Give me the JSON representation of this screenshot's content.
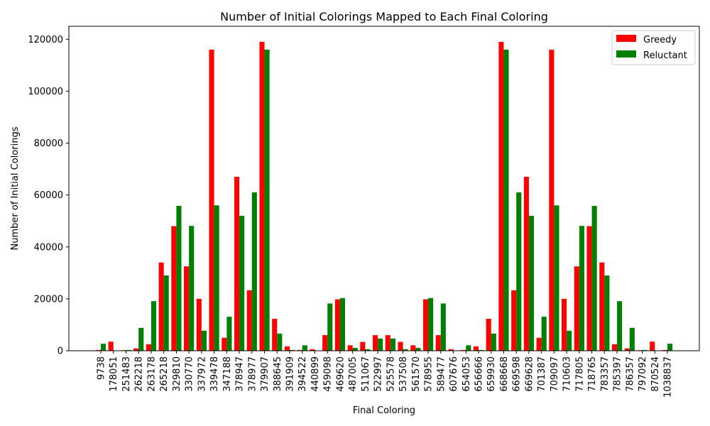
{
  "chart_data": {
    "type": "bar",
    "title": "Number of Initial Colorings Mapped to Each Final Coloring",
    "xlabel": "Final Coloring",
    "ylabel": "Number of Initial Colorings",
    "ylim": [
      0,
      125000
    ],
    "yticks": [
      0,
      20000,
      40000,
      60000,
      80000,
      100000,
      120000
    ],
    "legend_position": "top-right",
    "grid": false,
    "categories": [
      "9738",
      "178051",
      "251483",
      "262218",
      "263178",
      "265218",
      "329810",
      "330770",
      "337972",
      "339478",
      "347188",
      "378947",
      "378977",
      "379907",
      "388645",
      "391909",
      "394522",
      "440899",
      "459098",
      "469620",
      "487005",
      "511067",
      "522997",
      "525578",
      "537508",
      "561570",
      "578955",
      "589477",
      "607676",
      "654053",
      "656666",
      "659930",
      "668668",
      "669598",
      "669628",
      "701387",
      "709097",
      "710603",
      "717805",
      "718765",
      "783357",
      "785397",
      "786357",
      "797092",
      "870524",
      "1038837"
    ],
    "series": [
      {
        "name": "Greedy",
        "color": "#ff0000",
        "values": [
          300,
          3500,
          200,
          900,
          2500,
          34000,
          48000,
          32500,
          20000,
          116000,
          5000,
          67000,
          23300,
          119000,
          12300,
          1700,
          300,
          600,
          6000,
          19800,
          2100,
          3400,
          6000,
          6000,
          3400,
          2100,
          19800,
          6000,
          600,
          300,
          1700,
          12300,
          119000,
          23300,
          67000,
          5000,
          116000,
          20000,
          32500,
          48000,
          34000,
          2500,
          900,
          200,
          3500,
          300
        ]
      },
      {
        "name": "Reluctant",
        "color": "#008000",
        "values": [
          2700,
          0,
          300,
          8800,
          19100,
          29000,
          55800,
          48100,
          7700,
          56000,
          13100,
          52000,
          61000,
          116000,
          6600,
          300,
          2100,
          0,
          18200,
          20300,
          1100,
          600,
          4700,
          4700,
          600,
          1100,
          20300,
          18200,
          0,
          2100,
          300,
          6600,
          116000,
          61000,
          52000,
          13100,
          56000,
          7700,
          48100,
          55800,
          29000,
          19100,
          8800,
          300,
          0,
          2700
        ]
      }
    ]
  }
}
